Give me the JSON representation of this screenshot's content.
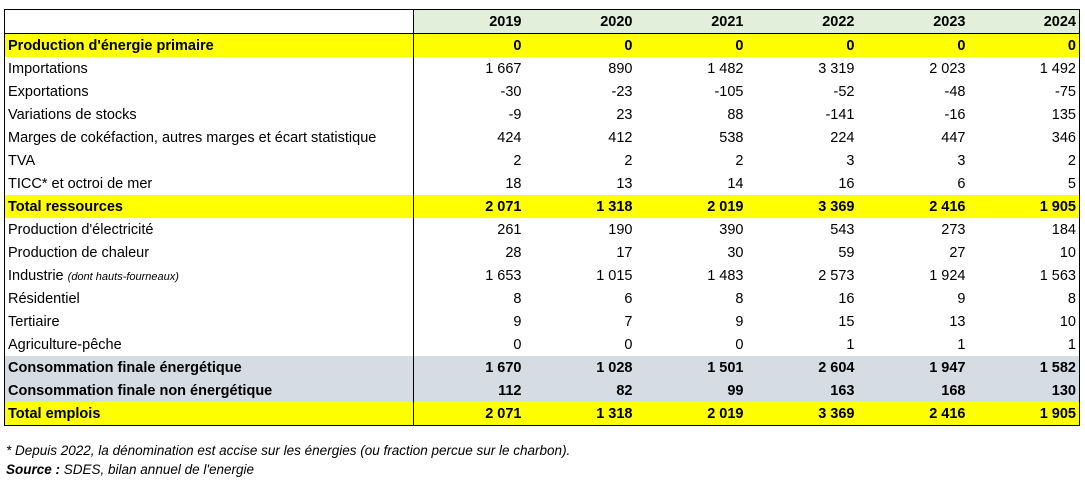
{
  "years": [
    "2019",
    "2020",
    "2021",
    "2022",
    "2023",
    "2024"
  ],
  "rows": [
    {
      "label": "Production d'énergie primaire",
      "style": "yellow",
      "values": [
        "0",
        "0",
        "0",
        "0",
        "0",
        "0"
      ]
    },
    {
      "label": "Importations",
      "style": "",
      "values": [
        "1 667",
        "890",
        "1 482",
        "3 319",
        "2 023",
        "1 492"
      ]
    },
    {
      "label": "Exportations",
      "style": "",
      "values": [
        "-30",
        "-23",
        "-105",
        "-52",
        "-48",
        "-75"
      ]
    },
    {
      "label": "Variations de stocks",
      "style": "",
      "values": [
        "-9",
        "23",
        "88",
        "-141",
        "-16",
        "135"
      ]
    },
    {
      "label": "Marges de cokéfaction, autres marges et écart statistique",
      "style": "",
      "values": [
        "424",
        "412",
        "538",
        "224",
        "447",
        "346"
      ]
    },
    {
      "label": "TVA",
      "style": "",
      "values": [
        "2",
        "2",
        "2",
        "3",
        "3",
        "2"
      ]
    },
    {
      "label": "TICC* et octroi de mer",
      "style": "",
      "values": [
        "18",
        "13",
        "14",
        "16",
        "6",
        "5"
      ]
    },
    {
      "label": "Total ressources",
      "style": "yellow",
      "values": [
        "2 071",
        "1 318",
        "2 019",
        "3 369",
        "2 416",
        "1 905"
      ]
    },
    {
      "label": "Production d'électricité",
      "style": "",
      "values": [
        "261",
        "190",
        "390",
        "543",
        "273",
        "184"
      ]
    },
    {
      "label": "Production de chaleur",
      "style": "",
      "values": [
        "28",
        "17",
        "30",
        "59",
        "27",
        "10"
      ]
    },
    {
      "label": "Industrie",
      "sublabel": "(dont hauts-fourneaux)",
      "style": "",
      "values": [
        "1 653",
        "1 015",
        "1 483",
        "2 573",
        "1 924",
        "1 563"
      ]
    },
    {
      "label": "Résidentiel",
      "style": "",
      "values": [
        "8",
        "6",
        "8",
        "16",
        "9",
        "8"
      ]
    },
    {
      "label": "Tertiaire",
      "style": "",
      "values": [
        "9",
        "7",
        "9",
        "15",
        "13",
        "10"
      ]
    },
    {
      "label": "Agriculture-pêche",
      "style": "",
      "values": [
        "0",
        "0",
        "0",
        "1",
        "1",
        "1"
      ]
    },
    {
      "label": "Consommation finale énergétique",
      "style": "gray",
      "values": [
        "1 670",
        "1 028",
        "1 501",
        "2 604",
        "1 947",
        "1 582"
      ]
    },
    {
      "label": "Consommation finale non énergétique",
      "style": "gray",
      "values": [
        "112",
        "82",
        "99",
        "163",
        "168",
        "130"
      ]
    },
    {
      "label": "Total emplois",
      "style": "yellow",
      "values": [
        "2 071",
        "1 318",
        "2 019",
        "3 369",
        "2 416",
        "1 905"
      ]
    }
  ],
  "footnote": "* Depuis 2022, la dénomination est accise sur les énergies (ou fraction percue sur le charbon).",
  "source_label": "Source :",
  "source_text": " SDES, bilan annuel de l'energie",
  "colors": {
    "yellow": "#ffff00",
    "gray": "#d6dce4",
    "header": "#e2efda"
  }
}
